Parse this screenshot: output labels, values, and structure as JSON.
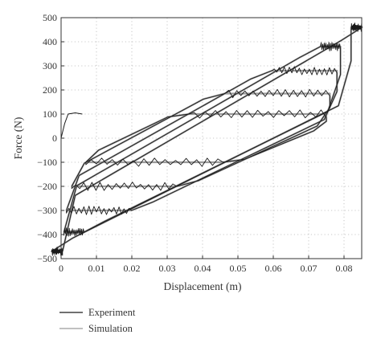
{
  "chart_data": {
    "type": "line",
    "title": "",
    "xlabel": "Displacement (m)",
    "ylabel": "Force (N)",
    "xlim": [
      0,
      0.085
    ],
    "ylim": [
      -500,
      500
    ],
    "xticks": [
      0,
      0.01,
      0.02,
      0.03,
      0.04,
      0.05,
      0.06,
      0.07,
      0.08
    ],
    "xtick_labels": [
      "0",
      "0.01",
      "0.02",
      "0.03",
      "0.04",
      "0.05",
      "0.06",
      "0.07",
      "0.08"
    ],
    "yticks": [
      -500,
      -400,
      -300,
      -200,
      -100,
      0,
      100,
      200,
      300,
      400,
      500
    ],
    "ytick_labels": [
      "−500",
      "−400",
      "−300",
      "−200",
      "−100",
      "0",
      "100",
      "200",
      "300",
      "400",
      "500"
    ],
    "grid": "dotted",
    "legend_position": "bottom-left",
    "colors": {
      "experiment": "#1a1a1a",
      "simulation": "#9a9a9a",
      "grid": "#b8b8b8",
      "axis": "#333333"
    },
    "series": [
      {
        "name": "Experiment",
        "loops": [
          {
            "x_min": 0.007,
            "x_max": 0.075,
            "upper": 100,
            "lower": -100
          },
          {
            "x_min": 0.003,
            "x_max": 0.076,
            "upper": 185,
            "lower": -200
          },
          {
            "x_min": 0.0015,
            "x_max": 0.078,
            "upper": 280,
            "lower": -300
          },
          {
            "x_min": 0.0008,
            "x_max": 0.079,
            "upper": 380,
            "lower": -390
          },
          {
            "x_min": 0.0004,
            "x_max": 0.082,
            "upper": 460,
            "lower": -470
          }
        ]
      },
      {
        "name": "Simulation",
        "loops": [
          {
            "x_min": 0.007,
            "x_max": 0.075,
            "upper": 100,
            "lower": -100
          },
          {
            "x_min": 0.003,
            "x_max": 0.076,
            "upper": 185,
            "lower": -200
          },
          {
            "x_min": 0.0015,
            "x_max": 0.078,
            "upper": 280,
            "lower": -300
          },
          {
            "x_min": 0.0008,
            "x_max": 0.079,
            "upper": 380,
            "lower": -390
          },
          {
            "x_min": 0.0004,
            "x_max": 0.082,
            "upper": 460,
            "lower": -470
          }
        ]
      }
    ],
    "initial_loading": {
      "x": [
        0,
        0.001,
        0.002,
        0.004,
        0.006
      ],
      "y": [
        0,
        60,
        100,
        105,
        100
      ]
    }
  }
}
